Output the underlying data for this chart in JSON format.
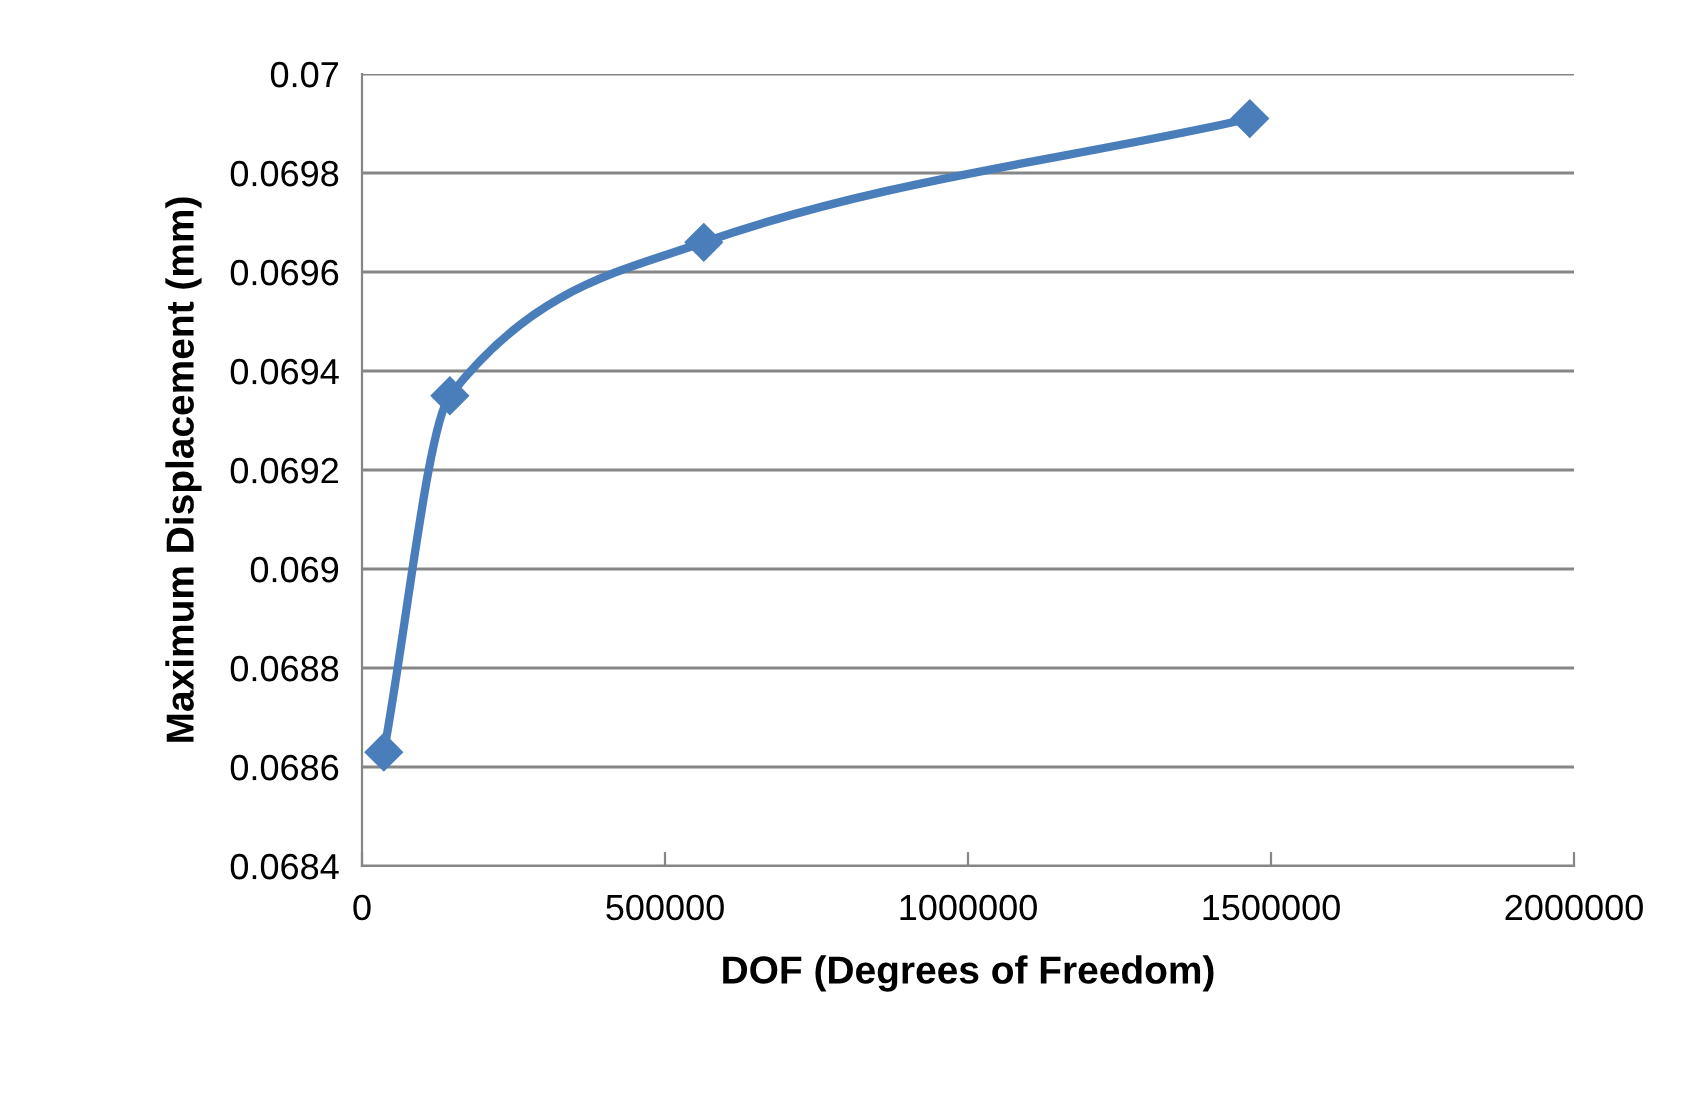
{
  "chart_data": {
    "type": "line",
    "xlabel": "DOF (Degrees of Freedom)",
    "ylabel": "Maximum Displacement (mm)",
    "x": [
      36000,
      145000,
      564000,
      1465000
    ],
    "series": [
      {
        "color": "#4a7ebb",
        "values": [
          0.06863,
          0.06935,
          0.06966,
          0.06991
        ]
      }
    ],
    "xlim": [
      0,
      2000000
    ],
    "xticks": [
      0,
      500000,
      1000000,
      1500000,
      2000000
    ],
    "ylim": [
      0.0684,
      0.07
    ],
    "yticks": [
      {
        "value": 0.0684,
        "label": "0.0684"
      },
      {
        "value": 0.0686,
        "label": "0.0686"
      },
      {
        "value": 0.0688,
        "label": "0.0688"
      },
      {
        "value": 0.069,
        "label": "0.069"
      },
      {
        "value": 0.0692,
        "label": "0.0692"
      },
      {
        "value": 0.0694,
        "label": "0.0694"
      },
      {
        "value": 0.0696,
        "label": "0.0696"
      },
      {
        "value": 0.0698,
        "label": "0.0698"
      },
      {
        "value": 0.07,
        "label": "0.07"
      }
    ],
    "grid": "y",
    "marker": "diamond",
    "line_style": "solid"
  }
}
